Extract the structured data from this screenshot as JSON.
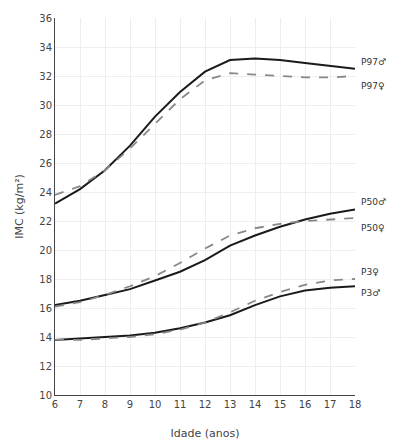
{
  "chart_data": {
    "type": "line",
    "x": [
      6,
      7,
      8,
      9,
      10,
      11,
      12,
      13,
      14,
      15,
      16,
      17,
      18
    ],
    "series": [
      {
        "color": "#1a1a1a",
        "line_style": "solid",
        "values": [
          23.2,
          24.2,
          25.5,
          27.2,
          29.2,
          30.9,
          32.3,
          33.1,
          33.2,
          33.1,
          32.9,
          32.7,
          32.5
        ]
      },
      {
        "color": "#888888",
        "line_style": "dashed",
        "values": [
          23.8,
          24.4,
          25.5,
          27.0,
          28.7,
          30.4,
          31.7,
          32.2,
          32.1,
          32.0,
          31.9,
          31.9,
          32.0
        ]
      },
      {
        "color": "#1a1a1a",
        "line_style": "solid",
        "values": [
          16.2,
          16.5,
          16.9,
          17.3,
          17.9,
          18.5,
          19.3,
          20.3,
          21.0,
          21.6,
          22.1,
          22.5,
          22.8
        ]
      },
      {
        "color": "#888888",
        "line_style": "dashed",
        "values": [
          16.1,
          16.4,
          16.9,
          17.5,
          18.2,
          19.1,
          20.1,
          21.0,
          21.5,
          21.8,
          22.0,
          22.1,
          22.2
        ]
      },
      {
        "color": "#1a1a1a",
        "line_style": "solid",
        "values": [
          13.8,
          13.9,
          14.0,
          14.1,
          14.3,
          14.6,
          15.0,
          15.5,
          16.2,
          16.8,
          17.2,
          17.4,
          17.5
        ]
      },
      {
        "color": "#888888",
        "line_style": "dashed",
        "values": [
          13.8,
          13.8,
          13.9,
          14.0,
          14.2,
          14.5,
          15.0,
          15.7,
          16.5,
          17.1,
          17.6,
          17.9,
          18.0
        ]
      }
    ],
    "xlabel": "Idade (anos)",
    "ylabel": "IMC (kg/m²)",
    "xlim": [
      6,
      18
    ],
    "ylim": [
      10,
      36
    ],
    "xticks": [
      6,
      7,
      8,
      9,
      10,
      11,
      12,
      13,
      14,
      15,
      16,
      17,
      18
    ],
    "yticks": [
      10,
      12,
      14,
      16,
      18,
      20,
      22,
      24,
      26,
      28,
      30,
      32,
      34,
      36
    ],
    "grid": true,
    "annotations": [
      {
        "text": "P97♂",
        "x": 18,
        "y": 32.5
      },
      {
        "text": "P97♀",
        "x": 18,
        "y": 31.8
      },
      {
        "text": "P50♂",
        "x": 18,
        "y": 22.8
      },
      {
        "text": "P50♀",
        "x": 18,
        "y": 22.0
      },
      {
        "text": "P3♀",
        "x": 18,
        "y": 18.0
      },
      {
        "text": "P3♂",
        "x": 18,
        "y": 17.5
      }
    ]
  }
}
